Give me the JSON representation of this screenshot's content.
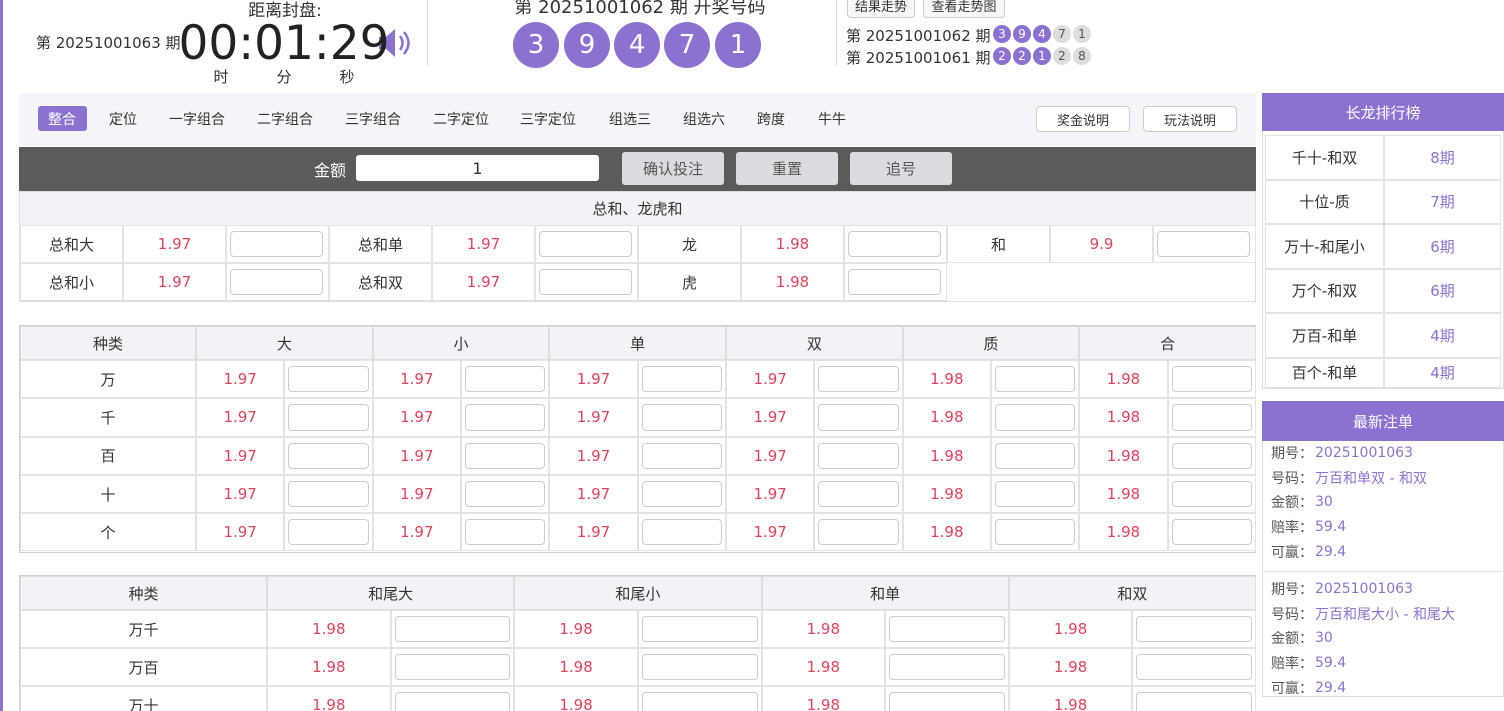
{
  "header": {
    "countdown_label": "距离封盘:",
    "current_issue": "第 20251001063 期",
    "time": "00:01:29",
    "units": [
      "时",
      "分",
      "秒"
    ],
    "draw_title": "第 20251001062 期  开奖号码",
    "balls": [
      3,
      9,
      4,
      7,
      1
    ],
    "buttons": [
      "结果走势",
      "查看走势图"
    ],
    "history": [
      {
        "issue": "第 20251001062 期",
        "balls": [
          3,
          9,
          4,
          7,
          1
        ]
      },
      {
        "issue": "第 20251001061 期",
        "balls": [
          2,
          2,
          1,
          2,
          8
        ]
      }
    ]
  },
  "tabs": {
    "items": [
      "整合",
      "定位",
      "一字组合",
      "二字组合",
      "三字组合",
      "二字定位",
      "三字定位",
      "组选三",
      "组选六",
      "跨度",
      "牛牛"
    ],
    "buttons": [
      "奖金说明",
      "玩法说明"
    ]
  },
  "bet_bar": {
    "label": "金额",
    "amount": "1",
    "buttons": [
      "确认投注",
      "重置",
      "追号"
    ]
  },
  "section1": {
    "title": "总和、龙虎和",
    "rows": [
      [
        {
          "name": "总和大",
          "odds": 1.97
        },
        {
          "name": "总和单",
          "odds": 1.97
        },
        {
          "name": "龙",
          "odds": 1.98
        },
        {
          "name": "和",
          "odds": 9.9
        }
      ],
      [
        {
          "name": "总和小",
          "odds": 1.97
        },
        {
          "name": "总和双",
          "odds": 1.97
        },
        {
          "name": "虎",
          "odds": 1.98
        }
      ]
    ]
  },
  "section2": {
    "headers": [
      "种类",
      "大",
      "小",
      "单",
      "双",
      "质",
      "合"
    ],
    "rows": [
      {
        "name": "万",
        "odds": [
          1.97,
          1.97,
          1.97,
          1.97,
          1.98,
          1.98
        ]
      },
      {
        "name": "千",
        "odds": [
          1.97,
          1.97,
          1.97,
          1.97,
          1.98,
          1.98
        ]
      },
      {
        "name": "百",
        "odds": [
          1.97,
          1.97,
          1.97,
          1.97,
          1.98,
          1.98
        ]
      },
      {
        "name": "十",
        "odds": [
          1.97,
          1.97,
          1.97,
          1.97,
          1.98,
          1.98
        ]
      },
      {
        "name": "个",
        "odds": [
          1.97,
          1.97,
          1.97,
          1.97,
          1.98,
          1.98
        ]
      }
    ]
  },
  "section3": {
    "headers": [
      "种类",
      "和尾大",
      "和尾小",
      "和单",
      "和双"
    ],
    "rows": [
      {
        "name": "万千",
        "odds": [
          1.98,
          1.98,
          1.98,
          1.98
        ]
      },
      {
        "name": "万百",
        "odds": [
          1.98,
          1.98,
          1.98,
          1.98
        ]
      },
      {
        "name": "万十",
        "odds": [
          1.98,
          1.98,
          1.98,
          1.98
        ]
      }
    ]
  },
  "ranking": {
    "title": "长龙排行榜",
    "rows": [
      {
        "name": "千十-和双",
        "count": "8期"
      },
      {
        "name": "十位-质",
        "count": "7期"
      },
      {
        "name": "万十-和尾小",
        "count": "6期"
      },
      {
        "name": "万个-和双",
        "count": "6期"
      },
      {
        "name": "万百-和单",
        "count": "4期"
      },
      {
        "name": "百个-和单",
        "count": "4期"
      }
    ]
  },
  "latest": {
    "title": "最新注单",
    "orders": [
      [
        {
          "label": "期号：",
          "value": "20251001063"
        },
        {
          "label": "号码：",
          "value": "万百和单双 - 和双"
        },
        {
          "label": "金额：",
          "value": "30"
        },
        {
          "label": "赔率：",
          "value": "59.4"
        },
        {
          "label": "可赢：",
          "value": "29.4"
        }
      ],
      [
        {
          "label": "期号：",
          "value": "20251001063"
        },
        {
          "label": "号码：",
          "value": "万百和尾大小 - 和尾大"
        },
        {
          "label": "金额：",
          "value": "30"
        },
        {
          "label": "赔率：",
          "value": "59.4"
        },
        {
          "label": "可赢：",
          "value": "29.4"
        }
      ]
    ]
  }
}
